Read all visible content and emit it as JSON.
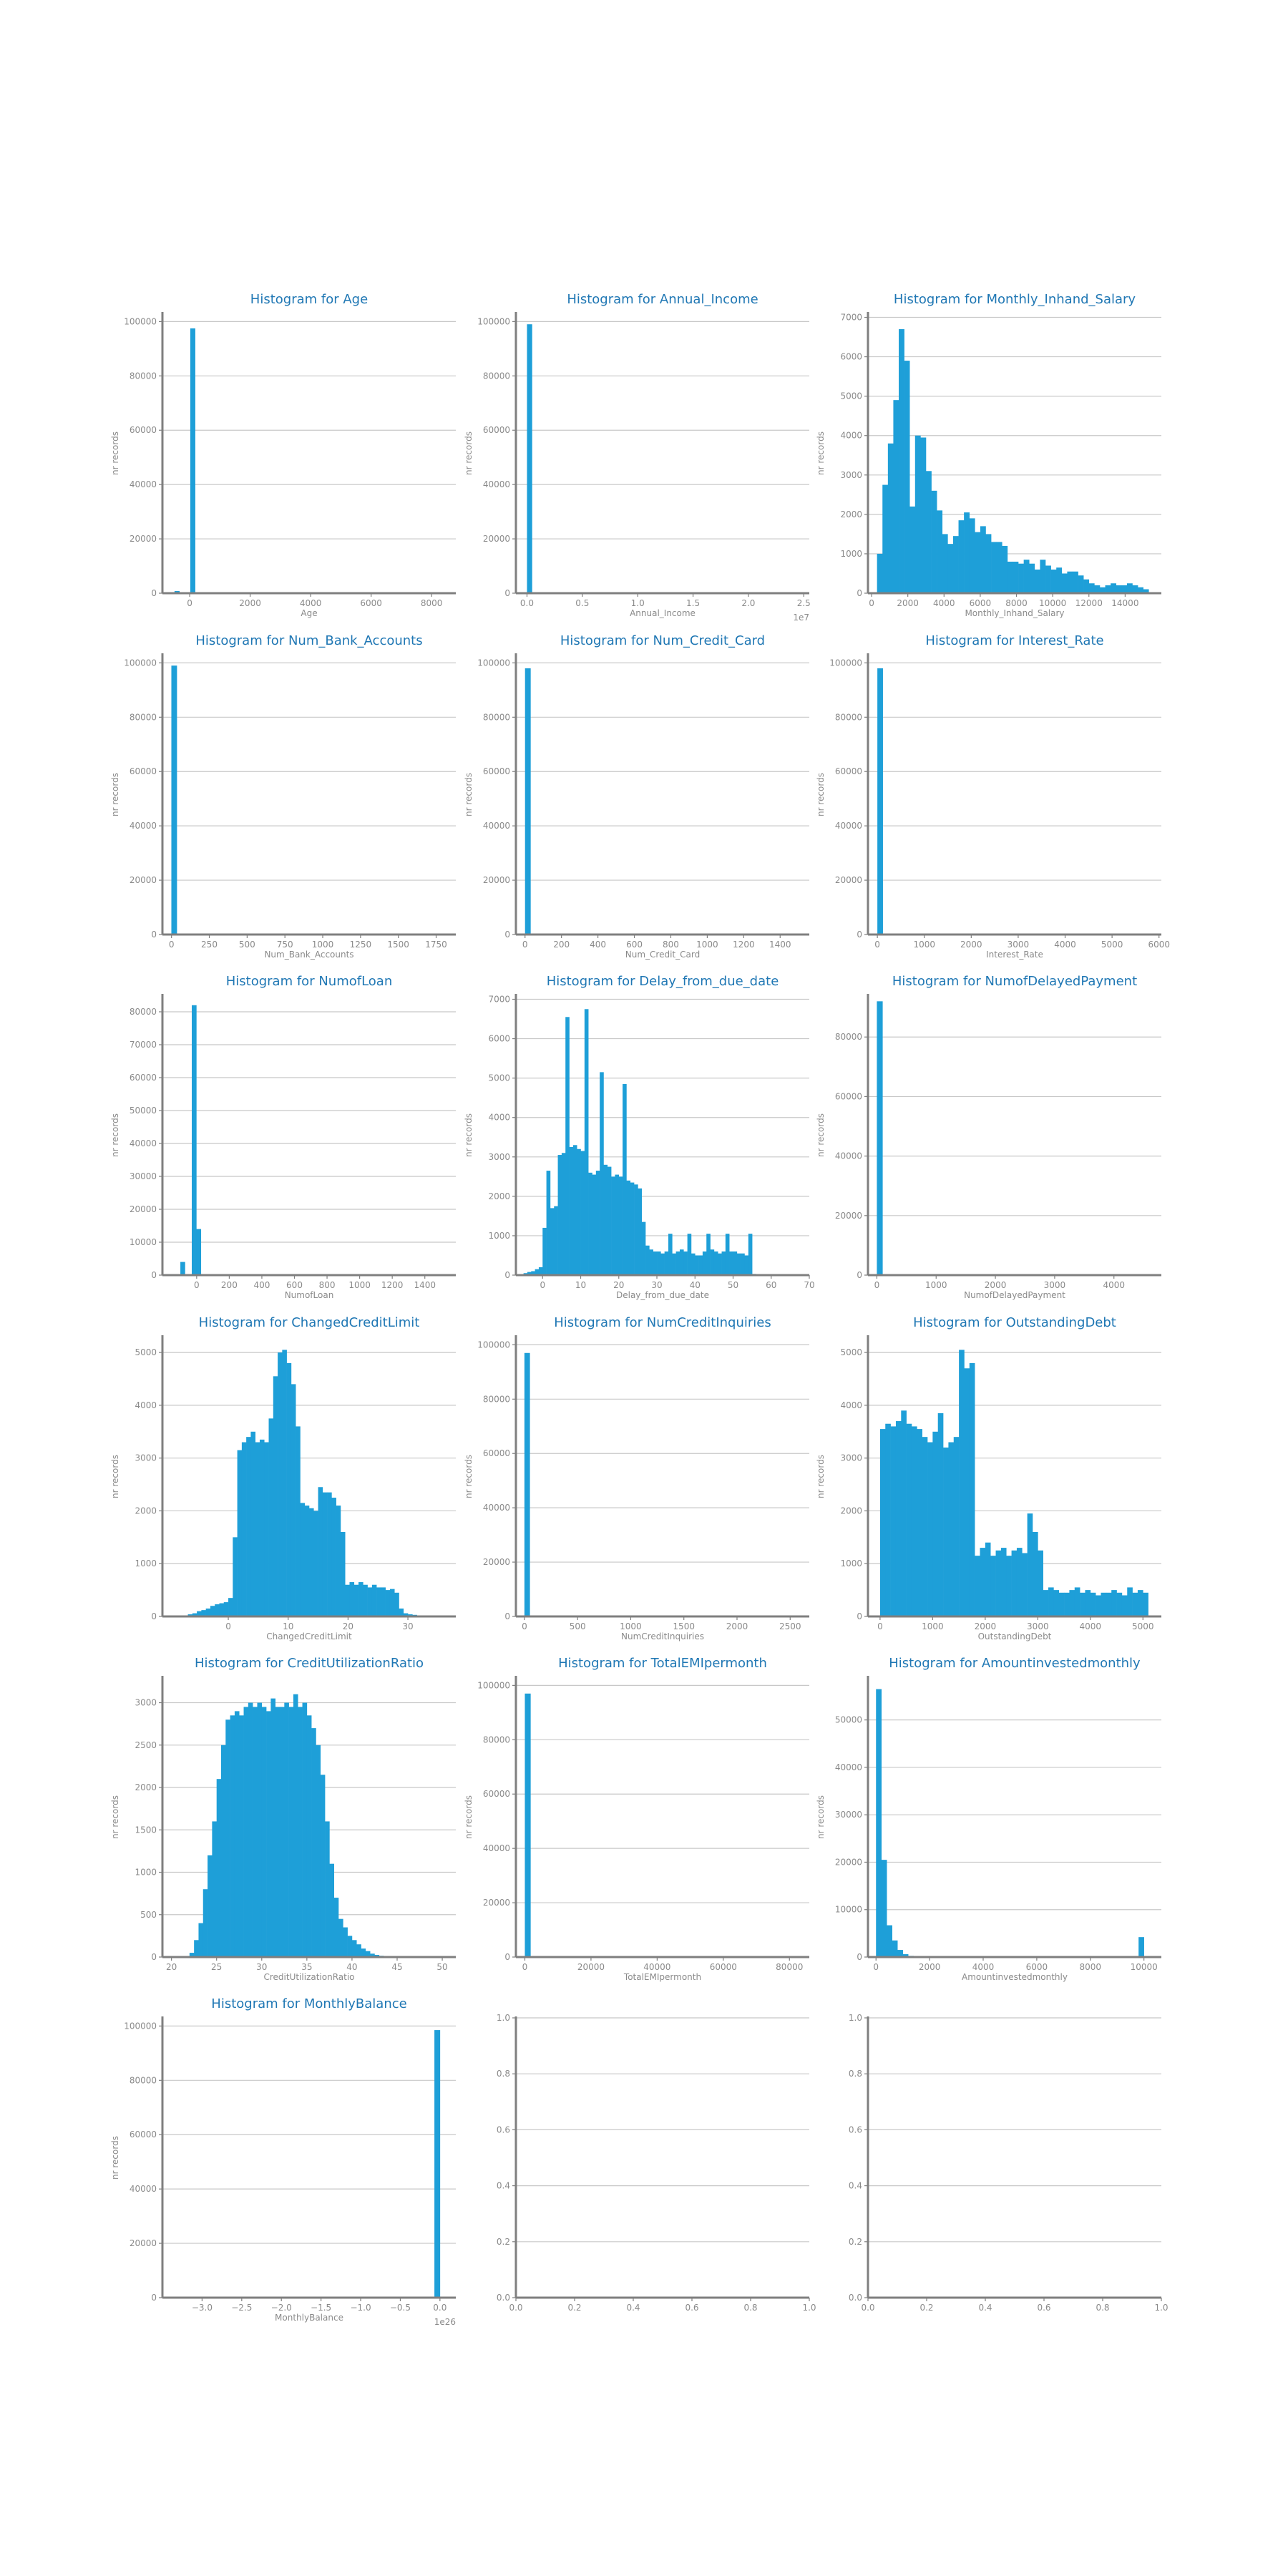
{
  "figure": {
    "ylabel": "nr records",
    "title_prefix": "Histogram for"
  },
  "colors": {
    "bar": "#1e9fd8",
    "title": "#1f77b4",
    "grid": "#c8c8c8",
    "axis": "#7f7f7f",
    "text": "#8a8a8a"
  },
  "chart_data": [
    {
      "type": "bar",
      "title": "Histogram for Age",
      "xlabel": "Age",
      "ylabel": "nr records",
      "xlim": [
        -900,
        8800
      ],
      "ylim": [
        0,
        103000
      ],
      "xticks": [
        0,
        2000,
        4000,
        6000,
        8000
      ],
      "xtick_labels": [
        "0",
        "2000",
        "4000",
        "6000",
        "8000"
      ],
      "yticks": [
        0,
        20000,
        40000,
        60000,
        80000,
        100000
      ],
      "ytick_labels": [
        "0",
        "20000",
        "40000",
        "60000",
        "80000",
        "100000"
      ],
      "bins": [
        [
          -500,
          -340,
          800
        ],
        [
          20,
          180,
          97500
        ]
      ]
    },
    {
      "type": "bar",
      "title": "Histogram for Annual_Income",
      "xlabel": "Annual_Income",
      "ylabel": "nr records",
      "offset_text": "1e7",
      "xlim": [
        -0.1,
        2.55
      ],
      "ylim": [
        0,
        103000
      ],
      "xticks": [
        0.0,
        0.5,
        1.0,
        1.5,
        2.0,
        2.5
      ],
      "xtick_labels": [
        "0.0",
        "0.5",
        "1.0",
        "1.5",
        "2.0",
        "2.5"
      ],
      "yticks": [
        0,
        20000,
        40000,
        60000,
        80000,
        100000
      ],
      "ytick_labels": [
        "0",
        "20000",
        "40000",
        "60000",
        "80000",
        "100000"
      ],
      "bins": [
        [
          0.0,
          0.045,
          99000
        ]
      ]
    },
    {
      "type": "bar",
      "title": "Histogram for Monthly_Inhand_Salary",
      "xlabel": "Monthly_Inhand_Salary",
      "ylabel": "nr records",
      "xlim": [
        -200,
        16000
      ],
      "ylim": [
        0,
        7100
      ],
      "xticks": [
        0,
        2000,
        4000,
        6000,
        8000,
        10000,
        12000,
        14000
      ],
      "xtick_labels": [
        "0",
        "2000",
        "4000",
        "6000",
        "8000",
        "10000",
        "12000",
        "14000"
      ],
      "yticks": [
        0,
        1000,
        2000,
        3000,
        4000,
        5000,
        6000,
        7000
      ],
      "ytick_labels": [
        "0",
        "1000",
        "2000",
        "3000",
        "4000",
        "5000",
        "6000",
        "7000"
      ],
      "bin_start": 300,
      "bin_width": 300,
      "counts": [
        1000,
        2750,
        3800,
        4900,
        6700,
        5900,
        2200,
        4000,
        3950,
        3100,
        2600,
        2100,
        1500,
        1250,
        1450,
        1850,
        2050,
        1900,
        1550,
        1700,
        1500,
        1300,
        1300,
        1200,
        800,
        800,
        750,
        850,
        750,
        600,
        850,
        700,
        600,
        650,
        500,
        550,
        550,
        450,
        350,
        250,
        200,
        150,
        200,
        250,
        200,
        200,
        250,
        200,
        150,
        100
      ]
    },
    {
      "type": "bar",
      "title": "Histogram for Num_Bank_Accounts",
      "xlabel": "Num_Bank_Accounts",
      "ylabel": "nr records",
      "xlim": [
        -60,
        1880
      ],
      "ylim": [
        0,
        103000
      ],
      "xticks": [
        0,
        250,
        500,
        750,
        1000,
        1250,
        1500,
        1750
      ],
      "xtick_labels": [
        "0",
        "250",
        "500",
        "750",
        "1000",
        "1250",
        "1500",
        "1750"
      ],
      "yticks": [
        0,
        20000,
        40000,
        60000,
        80000,
        100000
      ],
      "ytick_labels": [
        "0",
        "20000",
        "40000",
        "60000",
        "80000",
        "100000"
      ],
      "bins": [
        [
          -1,
          35,
          99000
        ]
      ]
    },
    {
      "type": "bar",
      "title": "Histogram for Num_Credit_Card",
      "xlabel": "Num_Credit_Card",
      "ylabel": "nr records",
      "xlim": [
        -50,
        1560
      ],
      "ylim": [
        0,
        103000
      ],
      "xticks": [
        0,
        200,
        400,
        600,
        800,
        1000,
        1200,
        1400
      ],
      "xtick_labels": [
        "0",
        "200",
        "400",
        "600",
        "800",
        "1000",
        "1200",
        "1400"
      ],
      "yticks": [
        0,
        20000,
        40000,
        60000,
        80000,
        100000
      ],
      "ytick_labels": [
        "0",
        "20000",
        "40000",
        "60000",
        "80000",
        "100000"
      ],
      "bins": [
        [
          0,
          30,
          98000
        ]
      ]
    },
    {
      "type": "bar",
      "title": "Histogram for Interest_Rate",
      "xlabel": "Interest_Rate",
      "ylabel": "nr records",
      "xlim": [
        -200,
        6050
      ],
      "ylim": [
        0,
        103000
      ],
      "xticks": [
        0,
        1000,
        2000,
        3000,
        4000,
        5000,
        6000
      ],
      "xtick_labels": [
        "0",
        "1000",
        "2000",
        "3000",
        "4000",
        "5000",
        "6000"
      ],
      "yticks": [
        0,
        20000,
        40000,
        60000,
        80000,
        100000
      ],
      "ytick_labels": [
        "0",
        "20000",
        "40000",
        "60000",
        "80000",
        "100000"
      ],
      "bins": [
        [
          0,
          115,
          98000
        ]
      ]
    },
    {
      "type": "bar",
      "title": "Histogram for NumofLoan",
      "xlabel": "NumofLoan",
      "ylabel": "nr records",
      "xlim": [
        -210,
        1590
      ],
      "ylim": [
        0,
        85000
      ],
      "xticks": [
        0,
        200,
        400,
        600,
        800,
        1000,
        1200,
        1400
      ],
      "xtick_labels": [
        "0",
        "200",
        "400",
        "600",
        "800",
        "1000",
        "1200",
        "1400"
      ],
      "yticks": [
        0,
        10000,
        20000,
        30000,
        40000,
        50000,
        60000,
        70000,
        80000
      ],
      "ytick_labels": [
        "0",
        "10000",
        "20000",
        "30000",
        "40000",
        "50000",
        "60000",
        "70000",
        "80000"
      ],
      "bins": [
        [
          -100,
          -72,
          4000
        ],
        [
          -30,
          -2,
          82000
        ],
        [
          -2,
          26,
          14000
        ]
      ]
    },
    {
      "type": "bar",
      "title": "Histogram for Delay_from_due_date",
      "xlabel": "Delay_from_due_date",
      "ylabel": "nr records",
      "xlim": [
        -7,
        70
      ],
      "ylim": [
        0,
        7100
      ],
      "xticks": [
        0,
        10,
        20,
        30,
        40,
        50,
        60,
        70
      ],
      "xtick_labels": [
        "0",
        "10",
        "20",
        "30",
        "40",
        "50",
        "60",
        "70"
      ],
      "yticks": [
        0,
        1000,
        2000,
        3000,
        4000,
        5000,
        6000,
        7000
      ],
      "ytick_labels": [
        "0",
        "1000",
        "2000",
        "3000",
        "4000",
        "5000",
        "6000",
        "7000"
      ],
      "bin_start": -5,
      "bin_width": 1,
      "counts": [
        50,
        80,
        100,
        150,
        200,
        1200,
        2650,
        1700,
        1750,
        3050,
        3100,
        6550,
        3250,
        3300,
        3200,
        3150,
        6750,
        2600,
        2550,
        2650,
        5150,
        2800,
        2750,
        2500,
        2550,
        2500,
        4850,
        2400,
        2350,
        2300,
        2200,
        1350,
        750,
        650,
        600,
        600,
        550,
        600,
        1050,
        550,
        600,
        650,
        600,
        1050,
        550,
        500,
        500,
        600,
        1050,
        650,
        600,
        550,
        600,
        1050,
        600,
        600,
        550,
        550,
        500,
        1050,
        30,
        20,
        10,
        10
      ]
    },
    {
      "type": "bar",
      "title": "Histogram for NumofDelayedPayment",
      "xlabel": "NumofDelayedPayment",
      "ylabel": "nr records",
      "xlim": [
        -150,
        4800
      ],
      "ylim": [
        0,
        94000
      ],
      "xticks": [
        0,
        1000,
        2000,
        3000,
        4000
      ],
      "xtick_labels": [
        "0",
        "1000",
        "2000",
        "3000",
        "4000"
      ],
      "yticks": [
        0,
        20000,
        40000,
        60000,
        80000
      ],
      "ytick_labels": [
        "0",
        "20000",
        "40000",
        "60000",
        "80000"
      ],
      "bins": [
        [
          0,
          95,
          92000
        ]
      ]
    },
    {
      "type": "bar",
      "title": "Histogram for ChangedCreditLimit",
      "xlabel": "ChangedCreditLimit",
      "ylabel": "nr records",
      "xlim": [
        -11,
        38
      ],
      "ylim": [
        0,
        5300
      ],
      "xticks": [
        0,
        10,
        20,
        30
      ],
      "xtick_labels": [
        "0",
        "10",
        "20",
        "30"
      ],
      "yticks": [
        0,
        1000,
        2000,
        3000,
        4000,
        5000
      ],
      "ytick_labels": [
        "0",
        "1000",
        "2000",
        "3000",
        "4000",
        "5000"
      ],
      "bin_start": -7.5,
      "bin_width": 0.75,
      "counts": [
        20,
        40,
        60,
        100,
        120,
        150,
        200,
        230,
        250,
        270,
        350,
        1500,
        3150,
        3300,
        3400,
        3500,
        3300,
        3350,
        3300,
        3750,
        4550,
        5000,
        5050,
        4800,
        4400,
        3600,
        2150,
        2100,
        2050,
        2000,
        2450,
        2350,
        2350,
        2250,
        2100,
        1600,
        600,
        650,
        600,
        650,
        600,
        550,
        600,
        550,
        550,
        500,
        520,
        450,
        150,
        60,
        40,
        30,
        20,
        10
      ]
    },
    {
      "type": "bar",
      "title": "Histogram for NumCreditInquiries",
      "xlabel": "NumCreditInquiries",
      "ylabel": "nr records",
      "xlim": [
        -80,
        2680
      ],
      "ylim": [
        0,
        103000
      ],
      "xticks": [
        0,
        500,
        1000,
        1500,
        2000,
        2500
      ],
      "xtick_labels": [
        "0",
        "500",
        "1000",
        "1500",
        "2000",
        "2500"
      ],
      "yticks": [
        0,
        20000,
        40000,
        60000,
        80000,
        100000
      ],
      "ytick_labels": [
        "0",
        "20000",
        "40000",
        "60000",
        "80000",
        "100000"
      ],
      "bins": [
        [
          0,
          50,
          97000
        ]
      ]
    },
    {
      "type": "bar",
      "title": "Histogram for OutstandingDebt",
      "xlabel": "OutstandingDebt",
      "ylabel": "nr records",
      "xlim": [
        -230,
        5350
      ],
      "ylim": [
        0,
        5300
      ],
      "xticks": [
        0,
        1000,
        2000,
        3000,
        4000,
        5000
      ],
      "xtick_labels": [
        "0",
        "1000",
        "2000",
        "3000",
        "4000",
        "5000"
      ],
      "yticks": [
        0,
        1000,
        2000,
        3000,
        4000,
        5000
      ],
      "ytick_labels": [
        "0",
        "1000",
        "2000",
        "3000",
        "4000",
        "5000"
      ],
      "bin_start": 0,
      "bin_width": 100,
      "counts": [
        3550,
        3650,
        3600,
        3700,
        3900,
        3650,
        3600,
        3550,
        3400,
        3300,
        3500,
        3850,
        3200,
        3300,
        3400,
        5050,
        4700,
        4800,
        1150,
        1300,
        1400,
        1150,
        1250,
        1300,
        1150,
        1250,
        1300,
        1200,
        1950,
        1600,
        1250,
        500,
        550,
        500,
        450,
        450,
        500,
        550,
        450,
        500,
        450,
        400,
        450,
        450,
        500,
        450,
        400,
        550,
        450,
        500,
        450
      ]
    },
    {
      "type": "bar",
      "title": "Histogram for CreditUtilizationRatio",
      "xlabel": "CreditUtilizationRatio",
      "ylabel": "nr records",
      "xlim": [
        19,
        51.5
      ],
      "ylim": [
        0,
        3300
      ],
      "xticks": [
        20,
        25,
        30,
        35,
        40,
        45,
        50
      ],
      "xtick_labels": [
        "20",
        "25",
        "30",
        "35",
        "40",
        "45",
        "50"
      ],
      "yticks": [
        0,
        500,
        1000,
        1500,
        2000,
        2500,
        3000
      ],
      "ytick_labels": [
        "0",
        "500",
        "1000",
        "1500",
        "2000",
        "2500",
        "3000"
      ],
      "bin_start": 22,
      "bin_width": 0.5,
      "counts": [
        50,
        200,
        400,
        800,
        1200,
        1600,
        2100,
        2500,
        2800,
        2850,
        2900,
        2850,
        2950,
        3000,
        2950,
        3000,
        2950,
        2900,
        3050,
        2950,
        2950,
        3000,
        2950,
        3100,
        2950,
        3000,
        2850,
        2700,
        2500,
        2150,
        1600,
        1100,
        700,
        450,
        350,
        250,
        200,
        150,
        100,
        70,
        40,
        25,
        15,
        10
      ]
    },
    {
      "type": "bar",
      "title": "Histogram for TotalEMIpermonth",
      "xlabel": "TotalEMIpermonth",
      "ylabel": "nr records",
      "xlim": [
        -2700,
        86000
      ],
      "ylim": [
        0,
        103000
      ],
      "xticks": [
        0,
        20000,
        40000,
        60000,
        80000
      ],
      "xtick_labels": [
        "0",
        "20000",
        "40000",
        "60000",
        "80000"
      ],
      "yticks": [
        0,
        20000,
        40000,
        60000,
        80000,
        100000
      ],
      "ytick_labels": [
        "0",
        "20000",
        "40000",
        "60000",
        "80000",
        "100000"
      ],
      "bins": [
        [
          0,
          1700,
          97000
        ]
      ]
    },
    {
      "type": "bar",
      "title": "Histogram for Amountinvestedmonthly",
      "xlabel": "Amountinvestedmonthly",
      "ylabel": "nr records",
      "xlim": [
        -300,
        10650
      ],
      "ylim": [
        0,
        59000
      ],
      "xticks": [
        0,
        2000,
        4000,
        6000,
        8000,
        10000
      ],
      "xtick_labels": [
        "0",
        "2000",
        "4000",
        "6000",
        "8000",
        "10000"
      ],
      "yticks": [
        0,
        10000,
        20000,
        30000,
        40000,
        50000
      ],
      "ytick_labels": [
        "0",
        "10000",
        "20000",
        "30000",
        "40000",
        "50000"
      ],
      "bins": [
        [
          0,
          200,
          56500
        ],
        [
          200,
          400,
          20500
        ],
        [
          400,
          600,
          6700
        ],
        [
          600,
          800,
          3500
        ],
        [
          800,
          1000,
          1500
        ],
        [
          1000,
          1200,
          600
        ],
        [
          1200,
          1400,
          250
        ],
        [
          1400,
          1600,
          100
        ],
        [
          9800,
          10000,
          4200
        ]
      ]
    },
    {
      "type": "bar",
      "title": "Histogram for MonthlyBalance",
      "xlabel": "MonthlyBalance",
      "ylabel": "nr records",
      "offset_text": "1e26",
      "xlim": [
        -3.5,
        0.2
      ],
      "ylim": [
        0,
        103000
      ],
      "xticks": [
        -3.0,
        -2.5,
        -2.0,
        -1.5,
        -1.0,
        -0.5,
        0.0
      ],
      "xtick_labels": [
        "−3.0",
        "−2.5",
        "−2.0",
        "−1.5",
        "−1.0",
        "−0.5",
        "0.0"
      ],
      "yticks": [
        0,
        20000,
        40000,
        60000,
        80000,
        100000
      ],
      "ytick_labels": [
        "0",
        "20000",
        "40000",
        "60000",
        "80000",
        "100000"
      ],
      "bins": [
        [
          -0.07,
          0.0,
          98500
        ]
      ]
    },
    {
      "type": "empty",
      "title": "",
      "xlabel": "",
      "ylabel": "",
      "xlim": [
        0,
        1
      ],
      "ylim": [
        0,
        1
      ],
      "xticks": [
        0.0,
        0.2,
        0.4,
        0.6,
        0.8,
        1.0
      ],
      "xtick_labels": [
        "0.0",
        "0.2",
        "0.4",
        "0.6",
        "0.8",
        "1.0"
      ],
      "yticks": [
        0.0,
        0.2,
        0.4,
        0.6,
        0.8,
        1.0
      ],
      "ytick_labels": [
        "0.0",
        "0.2",
        "0.4",
        "0.6",
        "0.8",
        "1.0"
      ]
    },
    {
      "type": "empty",
      "title": "",
      "xlabel": "",
      "ylabel": "",
      "xlim": [
        0,
        1
      ],
      "ylim": [
        0,
        1
      ],
      "xticks": [
        0.0,
        0.2,
        0.4,
        0.6,
        0.8,
        1.0
      ],
      "xtick_labels": [
        "0.0",
        "0.2",
        "0.4",
        "0.6",
        "0.8",
        "1.0"
      ],
      "yticks": [
        0.0,
        0.2,
        0.4,
        0.6,
        0.8,
        1.0
      ],
      "ytick_labels": [
        "0.0",
        "0.2",
        "0.4",
        "0.6",
        "0.8",
        "1.0"
      ]
    }
  ]
}
